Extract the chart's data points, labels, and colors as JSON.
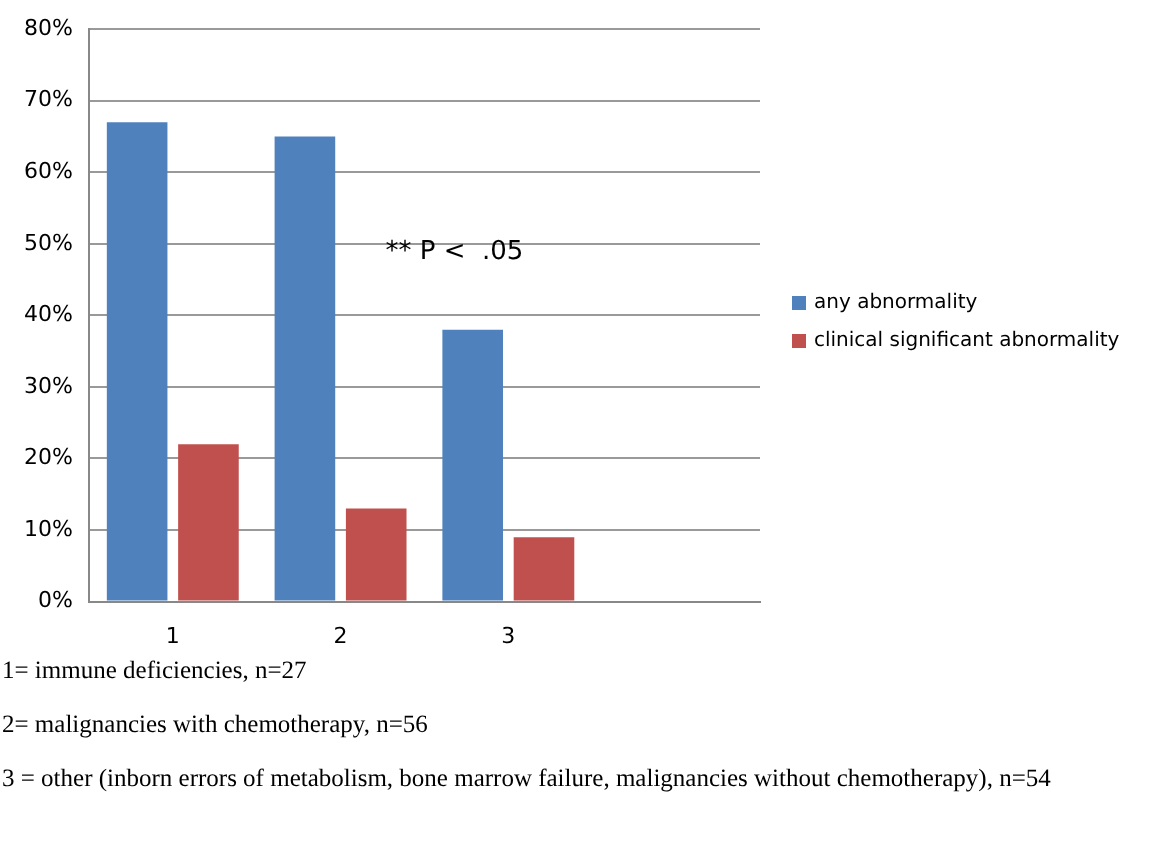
{
  "chart_data": {
    "type": "bar",
    "categories": [
      "1",
      "2",
      "3",
      null
    ],
    "series": [
      {
        "name": "any abnormality",
        "color": "#4f81bd",
        "values": [
          67,
          65,
          38,
          null
        ]
      },
      {
        "name": "clinical significant abnormality",
        "color": "#c0504d",
        "values": [
          22,
          13,
          9,
          null
        ]
      }
    ],
    "ylim": [
      0,
      80
    ],
    "yticks": [
      {
        "value": 0,
        "label": "0%"
      },
      {
        "value": 10,
        "label": "10%"
      },
      {
        "value": 20,
        "label": "20%"
      },
      {
        "value": 30,
        "label": "30%"
      },
      {
        "value": 40,
        "label": "40%"
      },
      {
        "value": 50,
        "label": "50%"
      },
      {
        "value": 60,
        "label": "60%"
      },
      {
        "value": 70,
        "label": "70%"
      },
      {
        "value": 80,
        "label": "80%"
      }
    ],
    "grid": "y",
    "legend": "right",
    "annotations": [
      "** P <  .05",
      "1= immune deficiencies, n=27",
      "2= malignancies with chemotherapy, n=56",
      "3 = other (inborn errors of metabolism, bone marrow failure, malignancies without chemotherapy), n=54"
    ]
  }
}
